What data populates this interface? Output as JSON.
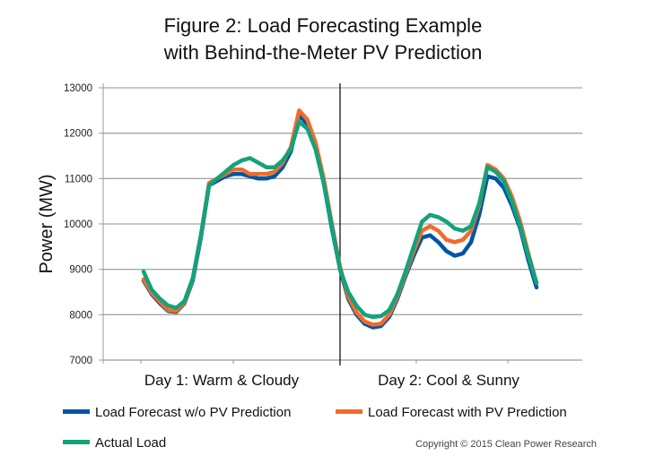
{
  "chart_data": {
    "type": "line",
    "title": [
      "Figure 2: Load Forecasting Example",
      "with Behind-the-Meter PV Prediction"
    ],
    "xlabel": "",
    "ylabel": "Power (MW)",
    "ylim": [
      7000,
      13000
    ],
    "yticks": [
      "7000",
      "8000",
      "9000",
      "10000",
      "11000",
      "12000",
      "13000"
    ],
    "grid": true,
    "categories": [
      "Day 1: Warm & Cloudy",
      "Day 2: Cool & Sunny"
    ],
    "x_hours": [
      0,
      1,
      2,
      3,
      4,
      5,
      6,
      7,
      8,
      9,
      10,
      11,
      12,
      13,
      14,
      15,
      16,
      17,
      18,
      19,
      20,
      21,
      22,
      23,
      24,
      25,
      26,
      27,
      28,
      29,
      30,
      31,
      32,
      33,
      34,
      35,
      36,
      37,
      38,
      39,
      40,
      41,
      42,
      43,
      44,
      45,
      46,
      47,
      48
    ],
    "series": [
      {
        "name": "Load Forecast w/o PV Prediction",
        "color": "#0055a5",
        "values": [
          8750,
          8450,
          8250,
          8080,
          8060,
          8250,
          8750,
          9700,
          10850,
          10950,
          11050,
          11100,
          11100,
          11050,
          11000,
          11000,
          11050,
          11250,
          11600,
          12400,
          12200,
          11700,
          10900,
          9900,
          9000,
          8350,
          8000,
          7800,
          7720,
          7750,
          7950,
          8350,
          8850,
          9300,
          9700,
          9750,
          9600,
          9400,
          9300,
          9350,
          9600,
          10200,
          11050,
          11000,
          10800,
          10400,
          9900,
          9200,
          8600
        ]
      },
      {
        "name": "Load Forecast with PV Prediction",
        "color": "#f26b2a",
        "values": [
          8780,
          8480,
          8280,
          8100,
          8080,
          8270,
          8780,
          9750,
          10900,
          11000,
          11100,
          11200,
          11200,
          11100,
          11100,
          11100,
          11150,
          11350,
          11700,
          12500,
          12300,
          11800,
          11000,
          10000,
          9050,
          8400,
          8050,
          7850,
          7780,
          7800,
          8000,
          8400,
          8900,
          9400,
          9850,
          9950,
          9850,
          9650,
          9600,
          9650,
          9850,
          10400,
          11300,
          11200,
          11000,
          10600,
          10050,
          9350,
          8700
        ]
      },
      {
        "name": "Actual Load",
        "color": "#13a37a",
        "values": [
          8950,
          8550,
          8350,
          8200,
          8150,
          8300,
          8800,
          9750,
          10850,
          11000,
          11150,
          11300,
          11400,
          11450,
          11350,
          11250,
          11250,
          11400,
          11650,
          12250,
          12100,
          11650,
          10900,
          9950,
          9000,
          8500,
          8200,
          8000,
          7950,
          7970,
          8100,
          8450,
          8950,
          9500,
          10050,
          10200,
          10150,
          10050,
          9900,
          9850,
          9950,
          10450,
          11250,
          11150,
          10950,
          10500,
          9950,
          9300,
          8700
        ]
      }
    ],
    "divider_at_hour": 24,
    "legend": "bottom"
  },
  "footer": {
    "copyright": "Copyright © 2015 Clean Power Research"
  }
}
